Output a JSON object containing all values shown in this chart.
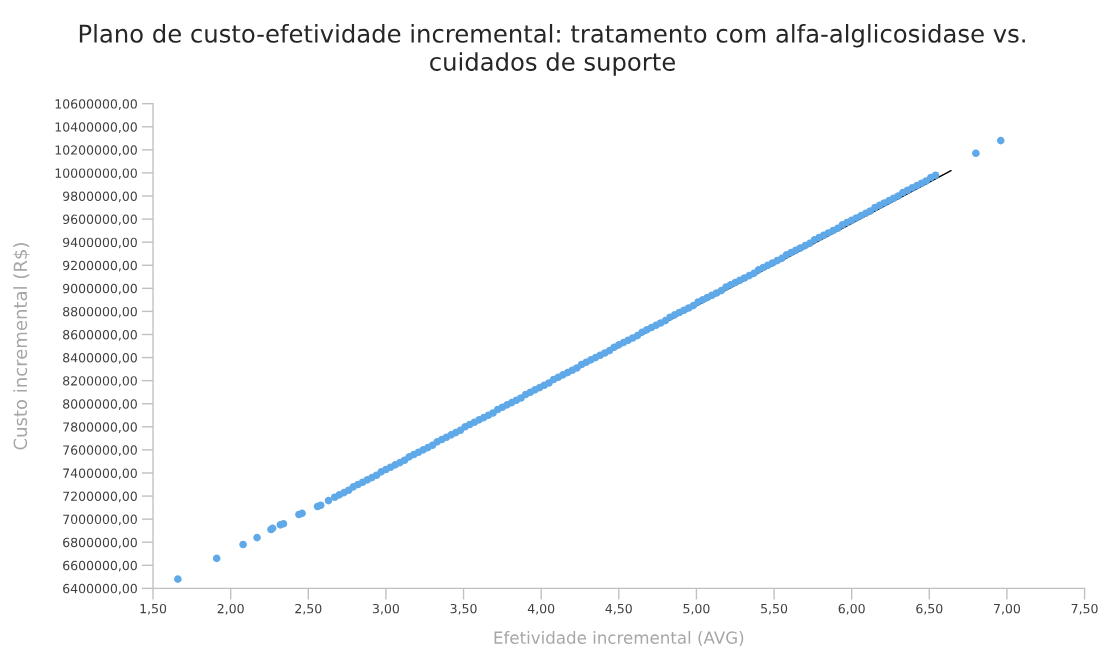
{
  "chart_data": {
    "type": "scatter",
    "title": "Plano de custo-efetividade incremental: tratamento com alfa-alglicosidase vs. cuidados de suporte",
    "xlabel": "Efetividade incremental (AVG)",
    "ylabel": "Custo incremental (R$)",
    "xlim": [
      1.5,
      7.5
    ],
    "ylim": [
      6400000,
      10600000
    ],
    "xticks": [
      {
        "value": 1.5,
        "label": "1,50"
      },
      {
        "value": 2.0,
        "label": "2,00"
      },
      {
        "value": 2.5,
        "label": "2,50"
      },
      {
        "value": 3.0,
        "label": "3,00"
      },
      {
        "value": 3.5,
        "label": "3,50"
      },
      {
        "value": 4.0,
        "label": "4,00"
      },
      {
        "value": 4.5,
        "label": "4,50"
      },
      {
        "value": 5.0,
        "label": "5,00"
      },
      {
        "value": 5.5,
        "label": "5,50"
      },
      {
        "value": 6.0,
        "label": "6,00"
      },
      {
        "value": 6.5,
        "label": "6,50"
      },
      {
        "value": 7.0,
        "label": "7,00"
      },
      {
        "value": 7.5,
        "label": "7,50"
      }
    ],
    "yticks": [
      {
        "value": 6400000,
        "label": "6400000,00"
      },
      {
        "value": 6600000,
        "label": "6600000,00"
      },
      {
        "value": 6800000,
        "label": "6800000,00"
      },
      {
        "value": 7000000,
        "label": "7000000,00"
      },
      {
        "value": 7200000,
        "label": "7200000,00"
      },
      {
        "value": 7400000,
        "label": "7400000,00"
      },
      {
        "value": 7600000,
        "label": "7600000,00"
      },
      {
        "value": 7800000,
        "label": "7800000,00"
      },
      {
        "value": 8000000,
        "label": "8000000,00"
      },
      {
        "value": 8200000,
        "label": "8200000,00"
      },
      {
        "value": 8400000,
        "label": "8400000,00"
      },
      {
        "value": 8600000,
        "label": "8600000,00"
      },
      {
        "value": 8800000,
        "label": "8800000,00"
      },
      {
        "value": 9000000,
        "label": "9000000,00"
      },
      {
        "value": 9200000,
        "label": "9200000,00"
      },
      {
        "value": 9400000,
        "label": "9400000,00"
      },
      {
        "value": 9600000,
        "label": "9600000,00"
      },
      {
        "value": 9800000,
        "label": "9800000,00"
      },
      {
        "value": 10000000,
        "label": "10000000,00"
      },
      {
        "value": 10200000,
        "label": "10200000,00"
      },
      {
        "value": 10400000,
        "label": "10400000,00"
      },
      {
        "value": 10600000,
        "label": "10600000,00"
      }
    ],
    "series": [
      {
        "marker": "circle",
        "color": "#5fa9e8",
        "x": [
          1.66,
          1.91,
          2.08,
          2.17,
          2.26,
          2.27,
          2.32,
          2.34,
          2.44,
          2.46,
          2.56,
          2.58,
          2.63,
          2.67,
          2.7,
          2.73,
          2.76,
          2.79,
          2.82,
          2.85,
          2.88,
          2.91,
          2.94,
          2.97,
          3.0,
          3.03,
          3.06,
          3.09,
          3.12,
          3.15,
          3.18,
          3.21,
          3.24,
          3.27,
          3.3,
          3.33,
          3.36,
          3.39,
          3.42,
          3.45,
          3.48,
          3.51,
          3.54,
          3.57,
          3.6,
          3.63,
          3.66,
          3.69,
          3.72,
          3.75,
          3.78,
          3.81,
          3.84,
          3.87,
          3.9,
          3.93,
          3.96,
          3.99,
          4.02,
          4.05,
          4.08,
          4.11,
          4.14,
          4.17,
          4.2,
          4.23,
          4.26,
          4.29,
          4.32,
          4.35,
          4.38,
          4.41,
          4.44,
          4.47,
          4.5,
          4.53,
          4.56,
          4.59,
          4.62,
          4.65,
          4.68,
          4.71,
          4.74,
          4.77,
          4.8,
          4.83,
          4.86,
          4.89,
          4.92,
          4.95,
          4.98,
          5.01,
          5.04,
          5.07,
          5.1,
          5.13,
          5.16,
          5.19,
          5.22,
          5.25,
          5.28,
          5.31,
          5.34,
          5.37,
          5.4,
          5.43,
          5.46,
          5.49,
          5.52,
          5.55,
          5.58,
          5.61,
          5.64,
          5.67,
          5.7,
          5.73,
          5.76,
          5.79,
          5.82,
          5.85,
          5.88,
          5.91,
          5.94,
          5.97,
          6.0,
          6.03,
          6.06,
          6.09,
          6.12,
          6.15,
          6.18,
          6.21,
          6.24,
          6.27,
          6.3,
          6.33,
          6.36,
          6.39,
          6.42,
          6.45,
          6.48,
          6.51,
          6.54,
          6.8,
          6.96
        ],
        "values": [
          6480000,
          6660000,
          6780000,
          6840000,
          6910000,
          6920000,
          6950000,
          6960000,
          7040000,
          7050000,
          7110000,
          7120000,
          7160000,
          7190000,
          7210000,
          7230000,
          7250000,
          7280000,
          7300000,
          7320000,
          7340000,
          7360000,
          7380000,
          7410000,
          7430000,
          7450000,
          7470000,
          7490000,
          7510000,
          7540000,
          7560000,
          7580000,
          7600000,
          7620000,
          7640000,
          7670000,
          7690000,
          7710000,
          7730000,
          7750000,
          7770000,
          7800000,
          7820000,
          7840000,
          7860000,
          7880000,
          7900000,
          7920000,
          7950000,
          7970000,
          7990000,
          8010000,
          8030000,
          8050000,
          8080000,
          8100000,
          8120000,
          8140000,
          8160000,
          8180000,
          8210000,
          8230000,
          8250000,
          8270000,
          8290000,
          8310000,
          8340000,
          8360000,
          8380000,
          8400000,
          8420000,
          8440000,
          8460000,
          8490000,
          8510000,
          8530000,
          8550000,
          8570000,
          8590000,
          8620000,
          8640000,
          8660000,
          8680000,
          8700000,
          8720000,
          8750000,
          8770000,
          8790000,
          8810000,
          8830000,
          8850000,
          8880000,
          8900000,
          8920000,
          8940000,
          8960000,
          8980000,
          9010000,
          9030000,
          9050000,
          9070000,
          9090000,
          9110000,
          9130000,
          9160000,
          9180000,
          9200000,
          9220000,
          9240000,
          9260000,
          9290000,
          9310000,
          9330000,
          9350000,
          9370000,
          9390000,
          9420000,
          9440000,
          9460000,
          9480000,
          9500000,
          9520000,
          9550000,
          9570000,
          9590000,
          9610000,
          9630000,
          9650000,
          9670000,
          9700000,
          9720000,
          9740000,
          9760000,
          9780000,
          9800000,
          9830000,
          9850000,
          9870000,
          9890000,
          9910000,
          9930000,
          9960000,
          9980000,
          10170000,
          10280000
        ]
      },
      {
        "type": "line",
        "color": "#000000",
        "line_style": "solid",
        "x": [
          2.75,
          6.64
        ],
        "values": [
          7240000,
          10020000
        ]
      }
    ]
  }
}
